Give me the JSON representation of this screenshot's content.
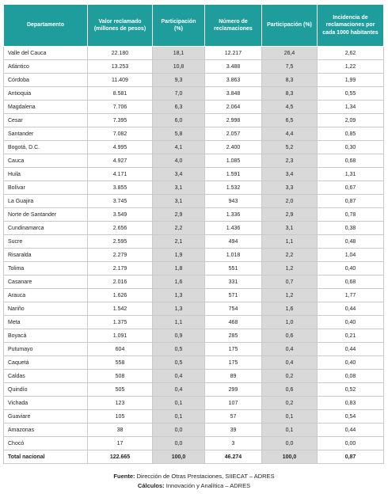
{
  "table": {
    "header": [
      "Departamento",
      "Valor reclamado (millones de pesos)",
      "Participación (%)",
      "Número de reclamaciones",
      "Participación (%)",
      "Incidencia de reclamaciones por cada 1000 habitantes"
    ],
    "rows": [
      [
        "Valle del Cauca",
        "22.180",
        "18,1",
        "12.217",
        "26,4",
        "2,62"
      ],
      [
        "Atlántico",
        "13.253",
        "10,8",
        "3.488",
        "7,5",
        "1,22"
      ],
      [
        "Córdoba",
        "11.409",
        "9,3",
        "3.863",
        "8,3",
        "1,99"
      ],
      [
        "Antioquia",
        "8.581",
        "7,0",
        "3.848",
        "8,3",
        "0,55"
      ],
      [
        "Magdalena",
        "7.706",
        "6,3",
        "2.064",
        "4,5",
        "1,34"
      ],
      [
        "Cesar",
        "7.395",
        "6,0",
        "2.998",
        "6,5",
        "2,09"
      ],
      [
        "Santander",
        "7.082",
        "5,8",
        "2.057",
        "4,4",
        "0,85"
      ],
      [
        "Bogotá, D.C.",
        "4.995",
        "4,1",
        "2.400",
        "5,2",
        "0,30"
      ],
      [
        "Cauca",
        "4.927",
        "4,0",
        "1.085",
        "2,3",
        "0,68"
      ],
      [
        "Huila",
        "4.171",
        "3,4",
        "1.591",
        "3,4",
        "1,31"
      ],
      [
        "Bolívar",
        "3.855",
        "3,1",
        "1.532",
        "3,3",
        "0,67"
      ],
      [
        "La Guajira",
        "3.745",
        "3,1",
        "943",
        "2,0",
        "0,87"
      ],
      [
        "Norte de Santander",
        "3.549",
        "2,9",
        "1.336",
        "2,9",
        "0,78"
      ],
      [
        "Cundinamarca",
        "2.656",
        "2,2",
        "1.436",
        "3,1",
        "0,38"
      ],
      [
        "Sucre",
        "2.595",
        "2,1",
        "494",
        "1,1",
        "0,48"
      ],
      [
        "Risaralda",
        "2.279",
        "1,9",
        "1.018",
        "2,2",
        "1,04"
      ],
      [
        "Tolima",
        "2.179",
        "1,8",
        "551",
        "1,2",
        "0,40"
      ],
      [
        "Casanare",
        "2.016",
        "1,6",
        "331",
        "0,7",
        "0,68"
      ],
      [
        "Arauca",
        "1.626",
        "1,3",
        "571",
        "1,2",
        "1,77"
      ],
      [
        "Nariño",
        "1.542",
        "1,3",
        "754",
        "1,6",
        "0,44"
      ],
      [
        "Meta",
        "1.375",
        "1,1",
        "468",
        "1,0",
        "0,40"
      ],
      [
        "Boyacá",
        "1.091",
        "0,9",
        "285",
        "0,6",
        "0,21"
      ],
      [
        "Putumayo",
        "604",
        "0,5",
        "175",
        "0,4",
        "0,44"
      ],
      [
        "Caquetá",
        "558",
        "0,5",
        "175",
        "0,4",
        "0,40"
      ],
      [
        "Caldas",
        "508",
        "0,4",
        "89",
        "0,2",
        "0,08"
      ],
      [
        "Quindío",
        "505",
        "0,4",
        "299",
        "0,6",
        "0,52"
      ],
      [
        "Vichada",
        "123",
        "0,1",
        "107",
        "0,2",
        "0,83"
      ],
      [
        "Guaviare",
        "105",
        "0,1",
        "57",
        "0,1",
        "0,54"
      ],
      [
        "Amazonas",
        "38",
        "0,0",
        "39",
        "0,1",
        "0,44"
      ],
      [
        "Chocó",
        "17",
        "0,0",
        "3",
        "0,0",
        "0,00"
      ]
    ],
    "total": [
      "Total nacional",
      "122.665",
      "100,0",
      "46.274",
      "100,0",
      "0,87"
    ]
  },
  "footer": {
    "source_label": "Fuente:",
    "source": "Dirección de Otras Prestaciones, SIIECAT – ADRES",
    "calc_label": "Cálculos:",
    "calc": "Innovación y Analítica – ADRES"
  }
}
